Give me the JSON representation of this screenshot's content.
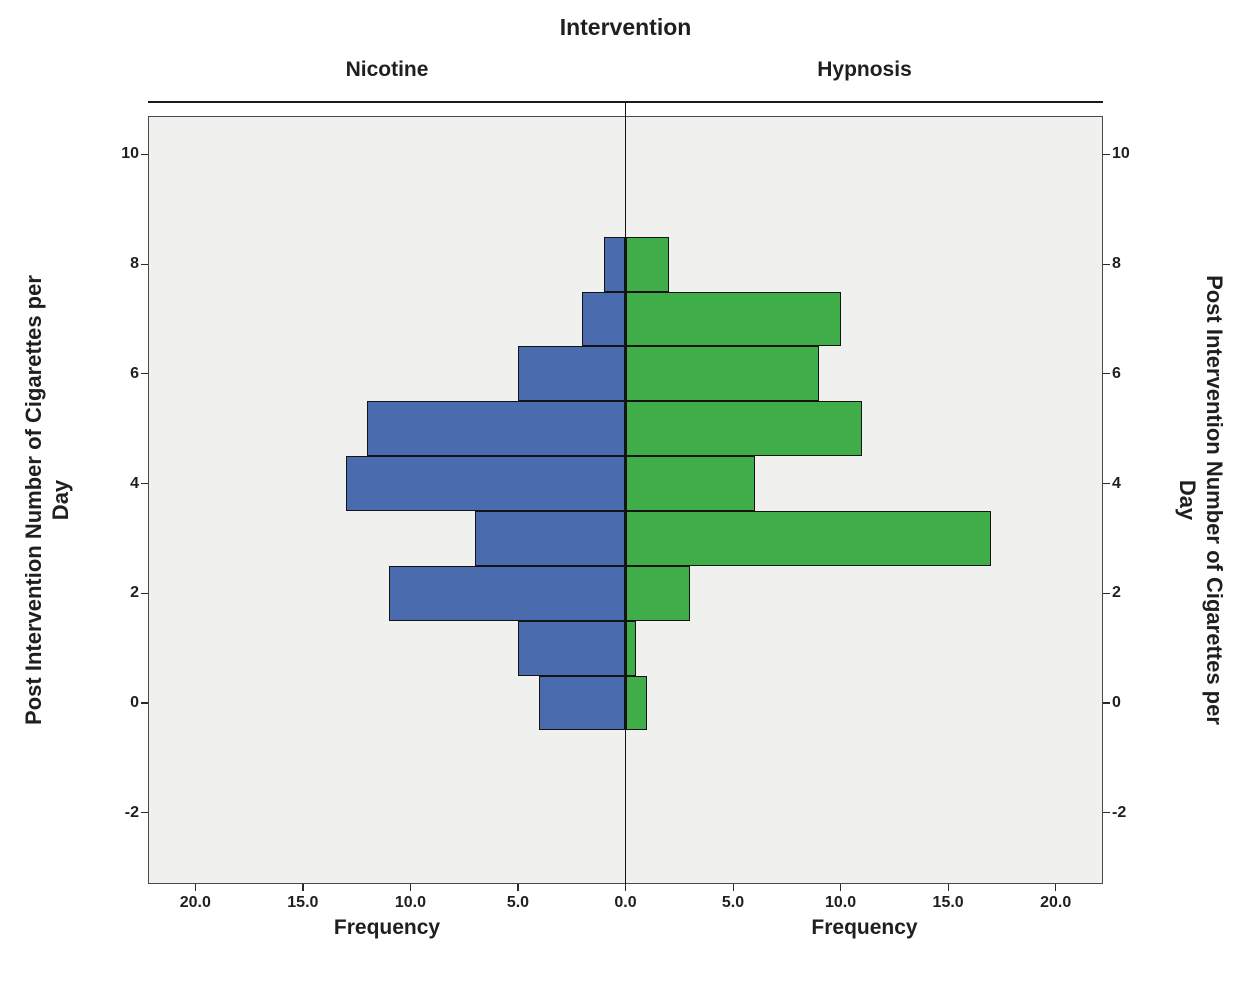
{
  "chart_data": {
    "type": "bar",
    "subtype": "back-to-back-histogram-population-pyramid",
    "title": "Intervention",
    "panels": [
      "Nicotine",
      "Hypnosis"
    ],
    "xlabel": "Frequency",
    "ylabel": "Post Intervention Number of Cigarettes per Day",
    "ylabel_lines": [
      "Post Intervention Number of Cigarettes per",
      "Day"
    ],
    "bin_centers": [
      0,
      1,
      2,
      3,
      4,
      5,
      6,
      7,
      8
    ],
    "bin_width": 1,
    "series": [
      {
        "name": "Nicotine",
        "side": "left",
        "color": "#4a6bad",
        "values": [
          4,
          5,
          11,
          7,
          13,
          12,
          5,
          2,
          1
        ]
      },
      {
        "name": "Hypnosis",
        "side": "right",
        "color": "#3fae49",
        "values": [
          1,
          0.5,
          3,
          17,
          6,
          11,
          9,
          10,
          2
        ]
      }
    ],
    "x_ticks": [
      0,
      5,
      10,
      15,
      20
    ],
    "x_tick_labels": [
      "0.0",
      "5.0",
      "10.0",
      "15.0",
      "20.0"
    ],
    "x_max_each_side": 22.2,
    "y_ticks": [
      -2,
      0,
      2,
      4,
      6,
      8,
      10
    ],
    "ylim": [
      -3.3,
      10.7
    ],
    "grid": false,
    "legend": "none",
    "plot_bg": "#f0f0ee",
    "bar_border": "#141414"
  }
}
